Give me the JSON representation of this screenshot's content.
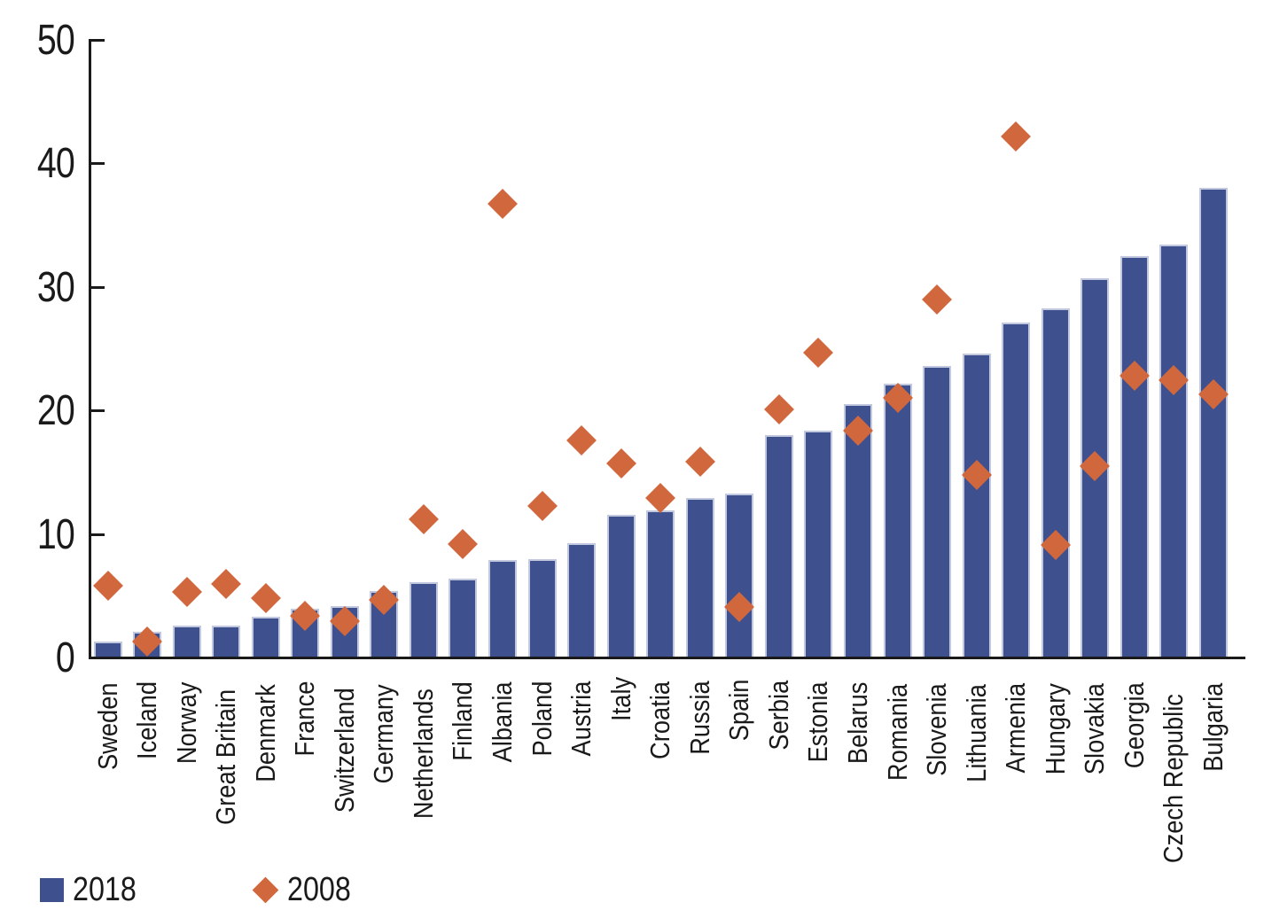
{
  "legend": {
    "series_2018_label": "2018",
    "series_2008_label": "2008"
  },
  "colors": {
    "bar_2018": "#3f508e",
    "bar_border": "#c2c8dd",
    "diamond_2008": "#d1683d",
    "axis": "#1a1a1a"
  },
  "chart_data": {
    "type": "bar",
    "title": "",
    "xlabel": "",
    "ylabel": "",
    "ylim": [
      0,
      50
    ],
    "yticks": [
      0,
      10,
      20,
      30,
      40,
      50
    ],
    "grid": false,
    "legend_position": "bottom-left",
    "categories": [
      "Sweden",
      "Iceland",
      "Norway",
      "Great Britain",
      "Denmark",
      "France",
      "Switzerland",
      "Germany",
      "Netherlands",
      "Finland",
      "Albania",
      "Poland",
      "Austria",
      "Italy",
      "Croatia",
      "Russia",
      "Spain",
      "Serbia",
      "Estonia",
      "Belarus",
      "Romania",
      "Slovenia",
      "Lithuania",
      "Armenia",
      "Hungary",
      "Slovakia",
      "Georgia",
      "Czech Republic",
      "Bulgaria"
    ],
    "series": [
      {
        "name": "2018",
        "style": "bar",
        "color": "#3f508e",
        "values": [
          1.2,
          2.0,
          2.5,
          2.5,
          3.2,
          3.9,
          4.1,
          5.3,
          6.0,
          6.3,
          7.8,
          7.9,
          9.2,
          11.5,
          11.8,
          12.8,
          13.2,
          17.9,
          18.3,
          20.4,
          22.1,
          23.5,
          24.5,
          27.0,
          28.2,
          30.6,
          32.4,
          33.3,
          37.9
        ]
      },
      {
        "name": "2008",
        "style": "diamond-marker",
        "color": "#d1683d",
        "values": [
          5.7,
          1.2,
          5.2,
          5.9,
          4.7,
          3.3,
          2.9,
          4.6,
          11.1,
          9.1,
          36.6,
          12.2,
          17.5,
          15.6,
          12.8,
          15.8,
          4.0,
          20.0,
          24.6,
          18.3,
          20.9,
          28.9,
          14.7,
          42.1,
          9.0,
          15.4,
          22.7,
          22.4,
          21.2
        ]
      }
    ]
  }
}
